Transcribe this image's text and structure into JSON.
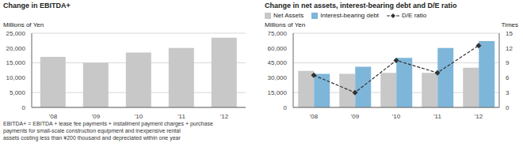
{
  "chart_data": [
    {
      "type": "bar",
      "title": "Change in EBITDA+",
      "ylabel": "Millions of Yen",
      "categories": [
        "'08",
        "'09",
        "'10",
        "'11",
        "'12"
      ],
      "values": [
        17000,
        15000,
        18500,
        20000,
        23500
      ],
      "color": "#c8c8c8",
      "ylim": [
        0,
        25000
      ],
      "yticks": [
        0,
        {
          "value": 5000,
          "label": "5,000"
        },
        {
          "value": 10000,
          "label": "10,000"
        },
        {
          "value": 15000,
          "label": "15,000"
        },
        {
          "value": 20000,
          "label": "20,000"
        },
        {
          "value": 25000,
          "label": "25,000"
        }
      ],
      "grid": true,
      "annotations": [
        "EBITDA+ = EBITDA + lease fee payments + installment payment charges + purchase",
        "payments for small-scale construction equipment and inexpensive rental",
        "assets costing less than ¥200 thousand and depreciated within one year"
      ]
    },
    {
      "type": "bar",
      "title": "Change in net assets, interest-bearing debt and D/E ratio",
      "ylabel": "Millions of Yen",
      "y2label": "Times",
      "categories": [
        "'08",
        "'09",
        "'10",
        "'11",
        "'12"
      ],
      "series": [
        {
          "name": "Net Assets",
          "color": "#c8c8c8",
          "values": [
            37000,
            34000,
            35000,
            35000,
            40000
          ]
        },
        {
          "name": "Interest-bearing debt",
          "color": "#7eb6d9",
          "values": [
            34000,
            41000,
            50000,
            60000,
            67000
          ]
        },
        {
          "name": "D/E ratio",
          "type": "line",
          "axis": "y2",
          "color": "#333333",
          "line_style": "dashed",
          "marker": "diamond",
          "values": [
            6.5,
            3.0,
            9.5,
            7.0,
            12.5
          ]
        }
      ],
      "ylim": [
        0,
        75000
      ],
      "yticks": [
        0,
        {
          "value": 15000,
          "label": "15,000"
        },
        {
          "value": 30000,
          "label": "30,000"
        },
        {
          "value": 45000,
          "label": "45,000"
        },
        {
          "value": 60000,
          "label": "60,000"
        },
        {
          "value": 75000,
          "label": "75,000"
        }
      ],
      "y2lim": [
        0,
        15
      ],
      "y2ticks": [
        0,
        3,
        6,
        9,
        12,
        15
      ],
      "grid": true,
      "legend": "top"
    }
  ]
}
